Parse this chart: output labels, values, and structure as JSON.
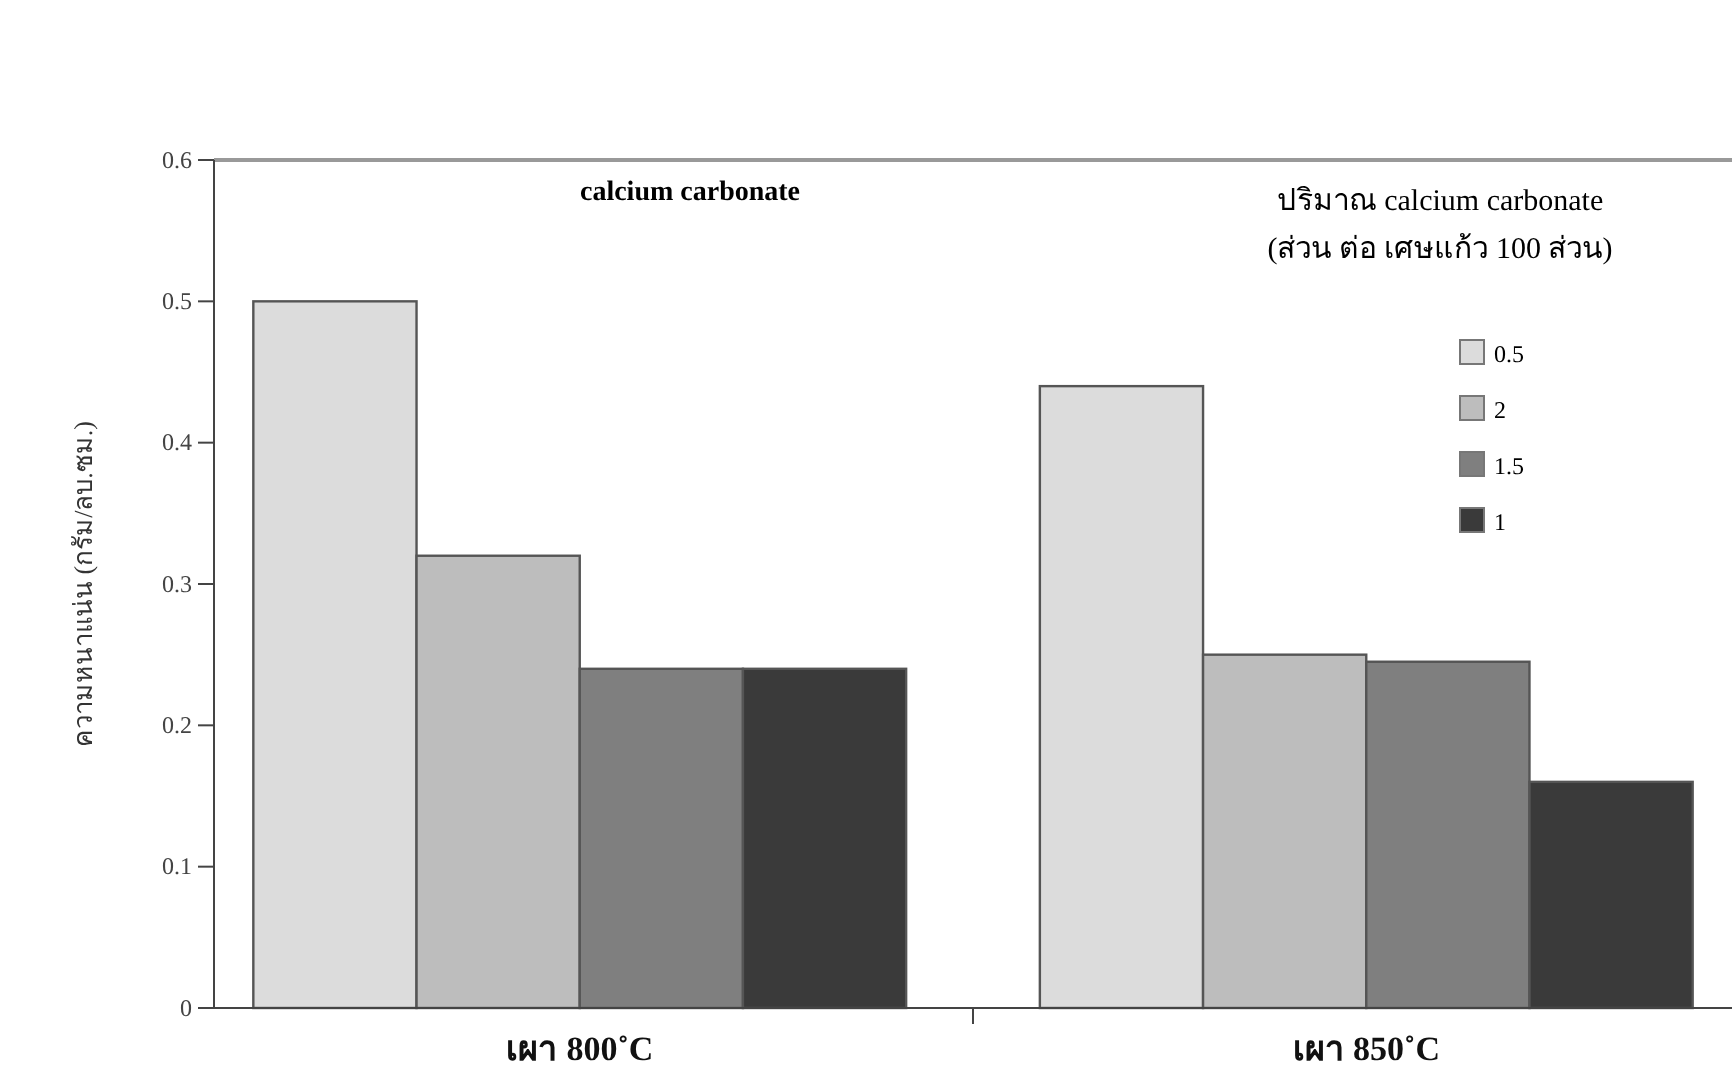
{
  "chart_data": {
    "type": "bar",
    "title": "calcium carbonate",
    "ylabel": "ความหนาแน่น (กรัม/ลบ.ซม.)",
    "legend_title": "ปริมาณ calcium carbonate\n(ส่วน ต่อ เศษแก้ว 100 ส่วน)",
    "categories": [
      "เผา 800˚C",
      "เผา 850˚C"
    ],
    "series": [
      {
        "name": "0.5",
        "color": "#dcdcdc",
        "values": [
          0.5,
          0.44
        ]
      },
      {
        "name": "2",
        "color": "#bdbdbd",
        "values": [
          0.32,
          0.25
        ]
      },
      {
        "name": "1.5",
        "color": "#7f7f7f",
        "values": [
          0.24,
          0.245
        ]
      },
      {
        "name": "1",
        "color": "#3a3a3a",
        "values": [
          0.24,
          0.16
        ]
      }
    ],
    "ylim": [
      0,
      0.6
    ],
    "yticks": [
      0,
      0.1,
      0.2,
      0.3,
      0.4,
      0.5,
      0.6
    ],
    "legend": "top right",
    "grid": false
  }
}
